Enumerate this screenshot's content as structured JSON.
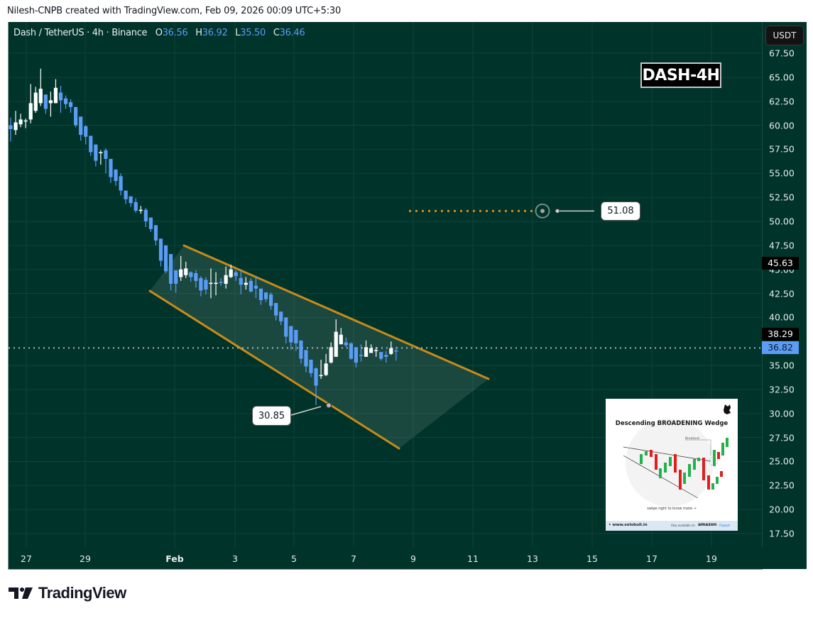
{
  "attribution": "Nilesh-CNPB created with TradingView.com, Feb 09, 2026 00:09 UTC+5:30",
  "legend": {
    "symbol": "Dash / TetherUS · 4h · Binance",
    "open_label": "O",
    "open": "36.56",
    "high_label": "H",
    "high": "36.92",
    "low_label": "L",
    "low": "35.50",
    "close_label": "C",
    "close": "36.46"
  },
  "currency_button": "USDT",
  "chart_title": "DASH-4H",
  "price_axis": {
    "ticks": [
      "67.50",
      "65.00",
      "62.50",
      "60.00",
      "57.50",
      "55.00",
      "52.50",
      "50.00",
      "47.50",
      "45.00",
      "42.50",
      "40.00",
      "35.00",
      "32.50",
      "30.00",
      "27.50",
      "25.00",
      "22.50",
      "20.00",
      "17.50"
    ],
    "badges": [
      {
        "value": "45.63",
        "bg": "#000000",
        "fg": "#ffffff"
      },
      {
        "value": "38.29",
        "bg": "#000000",
        "fg": "#ffffff"
      },
      {
        "value": "36.82",
        "bg": "#5b9cf6",
        "fg": "#0b1a33"
      }
    ]
  },
  "time_axis": {
    "ticks": [
      {
        "label": "27",
        "bold": false
      },
      {
        "label": "29",
        "bold": false
      },
      {
        "label": "Feb",
        "bold": true
      },
      {
        "label": "3",
        "bold": false
      },
      {
        "label": "5",
        "bold": false
      },
      {
        "label": "7",
        "bold": false
      },
      {
        "label": "9",
        "bold": false
      },
      {
        "label": "11",
        "bold": false
      },
      {
        "label": "13",
        "bold": false
      },
      {
        "label": "15",
        "bold": false
      },
      {
        "label": "17",
        "bold": false
      },
      {
        "label": "19",
        "bold": false
      }
    ]
  },
  "annotations": {
    "target_label": "51.08",
    "low_label": "30.85"
  },
  "info_card": {
    "title": "Descending BROADENING Wedge",
    "breakout_label": "Breakout",
    "swipe_text": "swipe right to know more →",
    "site": "• www.solobull.in",
    "available_text": "Also available on",
    "amazon": "amazon",
    "flipkart": "Flipkart"
  },
  "brand": "TradingView",
  "colors": {
    "background": "#00332a",
    "grid": "#0f4539",
    "up_candle": "#ffffff",
    "down_candle": "#5b9cf6",
    "wedge_line": "#c88a1a",
    "wedge_fill": "rgba(120,150,140,0.22)",
    "target_dots": "#d18a1c",
    "current_price_line": "#b0b8b5"
  },
  "chart_data": {
    "type": "candlestick",
    "title": "DASH-4H",
    "symbol": "Dash / TetherUS",
    "interval": "4h",
    "exchange": "Binance",
    "ylabel": "USDT",
    "ylim": [
      15.5,
      69.5
    ],
    "x_tick_labels": [
      "27",
      "29",
      "Feb",
      "3",
      "5",
      "7",
      "9",
      "11",
      "13",
      "15",
      "17",
      "19"
    ],
    "y_tick_labels": [
      "67.50",
      "65.00",
      "62.50",
      "60.00",
      "57.50",
      "55.00",
      "52.50",
      "50.00",
      "47.50",
      "45.00",
      "42.50",
      "40.00",
      "35.00",
      "32.50",
      "30.00",
      "27.50",
      "25.00",
      "22.50",
      "20.00",
      "17.50"
    ],
    "grid": true,
    "current_price": 36.82,
    "last_ohlc": {
      "open": 36.56,
      "high": 36.92,
      "low": 35.5,
      "close": 36.46
    },
    "marked_levels": [
      45.63,
      38.29,
      36.82
    ],
    "annotations": [
      {
        "type": "price_label",
        "value": 51.08,
        "note": "target"
      },
      {
        "type": "price_label",
        "value": 30.85,
        "note": "swing low"
      },
      {
        "type": "pattern",
        "name": "Descending Broadening Wedge",
        "upper_line": [
          [
            "Jan 31",
            47.4
          ],
          [
            "Feb 11",
            33.5
          ]
        ],
        "lower_line": [
          [
            "Jan 30",
            42.7
          ],
          [
            "Feb 8",
            26.3
          ]
        ]
      }
    ],
    "candles": [
      {
        "o": 60.0,
        "h": 60.8,
        "l": 58.3,
        "c": 59.6
      },
      {
        "o": 59.5,
        "h": 61.5,
        "l": 59.0,
        "c": 60.3
      },
      {
        "o": 60.1,
        "h": 61.2,
        "l": 59.8,
        "c": 60.6
      },
      {
        "o": 60.5,
        "h": 60.7,
        "l": 59.7,
        "c": 60.5
      },
      {
        "o": 60.6,
        "h": 64.3,
        "l": 60.2,
        "c": 62.3
      },
      {
        "o": 61.5,
        "h": 64.0,
        "l": 61.3,
        "c": 63.4
      },
      {
        "o": 62.3,
        "h": 65.9,
        "l": 62.0,
        "c": 63.8
      },
      {
        "o": 63.2,
        "h": 63.2,
        "l": 61.2,
        "c": 61.7
      },
      {
        "o": 62.3,
        "h": 63.5,
        "l": 60.9,
        "c": 62.6
      },
      {
        "o": 62.3,
        "h": 64.8,
        "l": 62.3,
        "c": 63.9
      },
      {
        "o": 63.4,
        "h": 64.1,
        "l": 61.3,
        "c": 62.6
      },
      {
        "o": 62.8,
        "h": 63.1,
        "l": 61.7,
        "c": 62.2
      },
      {
        "o": 62.4,
        "h": 62.7,
        "l": 61.3,
        "c": 61.9
      },
      {
        "o": 61.9,
        "h": 61.9,
        "l": 59.8,
        "c": 60.0
      },
      {
        "o": 60.9,
        "h": 60.9,
        "l": 58.4,
        "c": 59.0
      },
      {
        "o": 59.9,
        "h": 60.0,
        "l": 58.0,
        "c": 58.8
      },
      {
        "o": 58.9,
        "h": 58.9,
        "l": 56.8,
        "c": 57.2
      },
      {
        "o": 58.0,
        "h": 58.0,
        "l": 55.7,
        "c": 56.3
      },
      {
        "o": 57.1,
        "h": 57.4,
        "l": 55.9,
        "c": 57.2
      },
      {
        "o": 57.4,
        "h": 57.6,
        "l": 55.0,
        "c": 56.5
      },
      {
        "o": 56.5,
        "h": 56.5,
        "l": 54.0,
        "c": 54.6
      },
      {
        "o": 55.4,
        "h": 55.4,
        "l": 53.7,
        "c": 54.2
      },
      {
        "o": 54.7,
        "h": 55.0,
        "l": 52.7,
        "c": 53.2
      },
      {
        "o": 53.2,
        "h": 53.2,
        "l": 51.8,
        "c": 52.3
      },
      {
        "o": 52.6,
        "h": 52.6,
        "l": 51.5,
        "c": 51.9
      },
      {
        "o": 52.0,
        "h": 52.4,
        "l": 50.9,
        "c": 51.1
      },
      {
        "o": 51.2,
        "h": 51.6,
        "l": 50.8,
        "c": 51.2
      },
      {
        "o": 51.2,
        "h": 51.4,
        "l": 49.4,
        "c": 50.0
      },
      {
        "o": 50.4,
        "h": 50.4,
        "l": 48.9,
        "c": 49.2
      },
      {
        "o": 49.6,
        "h": 49.6,
        "l": 47.5,
        "c": 48.0
      },
      {
        "o": 48.2,
        "h": 48.2,
        "l": 45.3,
        "c": 45.9
      },
      {
        "o": 47.5,
        "h": 47.5,
        "l": 44.6,
        "c": 44.8
      },
      {
        "o": 46.6,
        "h": 46.6,
        "l": 42.8,
        "c": 43.5
      },
      {
        "o": 44.9,
        "h": 44.9,
        "l": 42.6,
        "c": 43.5
      },
      {
        "o": 44.2,
        "h": 46.4,
        "l": 43.8,
        "c": 45.0
      },
      {
        "o": 44.4,
        "h": 45.8,
        "l": 44.1,
        "c": 45.1
      },
      {
        "o": 44.7,
        "h": 44.8,
        "l": 43.7,
        "c": 44.2
      },
      {
        "o": 44.6,
        "h": 44.9,
        "l": 43.1,
        "c": 43.8
      },
      {
        "o": 44.1,
        "h": 44.3,
        "l": 42.2,
        "c": 42.8
      },
      {
        "o": 43.9,
        "h": 44.2,
        "l": 42.4,
        "c": 42.9
      },
      {
        "o": 43.6,
        "h": 45.1,
        "l": 42.0,
        "c": 43.6
      },
      {
        "o": 43.5,
        "h": 44.7,
        "l": 42.3,
        "c": 43.6
      },
      {
        "o": 43.7,
        "h": 44.1,
        "l": 43.3,
        "c": 43.6
      },
      {
        "o": 43.5,
        "h": 45.3,
        "l": 43.0,
        "c": 44.4
      },
      {
        "o": 44.2,
        "h": 45.5,
        "l": 44.1,
        "c": 45.0
      },
      {
        "o": 44.7,
        "h": 44.9,
        "l": 43.8,
        "c": 44.3
      },
      {
        "o": 44.1,
        "h": 44.9,
        "l": 42.4,
        "c": 43.4
      },
      {
        "o": 43.4,
        "h": 44.2,
        "l": 42.9,
        "c": 43.6
      },
      {
        "o": 43.8,
        "h": 44.1,
        "l": 42.6,
        "c": 42.7
      },
      {
        "o": 43.3,
        "h": 44.3,
        "l": 42.0,
        "c": 43.0
      },
      {
        "o": 43.0,
        "h": 43.0,
        "l": 41.3,
        "c": 41.8
      },
      {
        "o": 42.6,
        "h": 42.6,
        "l": 41.6,
        "c": 41.9
      },
      {
        "o": 42.4,
        "h": 42.6,
        "l": 40.8,
        "c": 41.2
      },
      {
        "o": 41.5,
        "h": 41.5,
        "l": 39.7,
        "c": 40.2
      },
      {
        "o": 40.6,
        "h": 40.6,
        "l": 39.2,
        "c": 39.6
      },
      {
        "o": 40.0,
        "h": 40.0,
        "l": 37.3,
        "c": 38.0
      },
      {
        "o": 39.1,
        "h": 39.1,
        "l": 36.6,
        "c": 37.4
      },
      {
        "o": 38.7,
        "h": 38.7,
        "l": 36.5,
        "c": 37.3
      },
      {
        "o": 37.6,
        "h": 37.6,
        "l": 35.2,
        "c": 35.7
      },
      {
        "o": 36.6,
        "h": 36.6,
        "l": 34.3,
        "c": 34.9
      },
      {
        "o": 35.6,
        "h": 35.6,
        "l": 33.8,
        "c": 34.2
      },
      {
        "o": 34.7,
        "h": 34.8,
        "l": 30.85,
        "c": 32.9
      },
      {
        "o": 34.0,
        "h": 35.6,
        "l": 33.6,
        "c": 34.0
      },
      {
        "o": 34.0,
        "h": 36.2,
        "l": 33.9,
        "c": 35.2
      },
      {
        "o": 35.3,
        "h": 37.4,
        "l": 35.2,
        "c": 36.9
      },
      {
        "o": 35.9,
        "h": 39.8,
        "l": 35.9,
        "c": 38.5
      },
      {
        "o": 37.2,
        "h": 38.9,
        "l": 37.2,
        "c": 38.2
      },
      {
        "o": 37.4,
        "h": 37.9,
        "l": 36.9,
        "c": 37.1
      },
      {
        "o": 37.3,
        "h": 37.4,
        "l": 35.6,
        "c": 35.7
      },
      {
        "o": 36.9,
        "h": 36.9,
        "l": 34.8,
        "c": 35.3
      },
      {
        "o": 36.1,
        "h": 37.2,
        "l": 35.4,
        "c": 36.0
      },
      {
        "o": 35.9,
        "h": 37.6,
        "l": 35.9,
        "c": 36.9
      },
      {
        "o": 36.3,
        "h": 37.2,
        "l": 36.3,
        "c": 36.8
      },
      {
        "o": 36.6,
        "h": 36.9,
        "l": 35.9,
        "c": 36.6
      },
      {
        "o": 36.4,
        "h": 36.4,
        "l": 35.5,
        "c": 35.7
      },
      {
        "o": 36.1,
        "h": 36.5,
        "l": 35.3,
        "c": 35.9
      },
      {
        "o": 36.2,
        "h": 37.5,
        "l": 36.1,
        "c": 36.8
      },
      {
        "o": 36.56,
        "h": 36.92,
        "l": 35.5,
        "c": 36.46
      }
    ]
  }
}
